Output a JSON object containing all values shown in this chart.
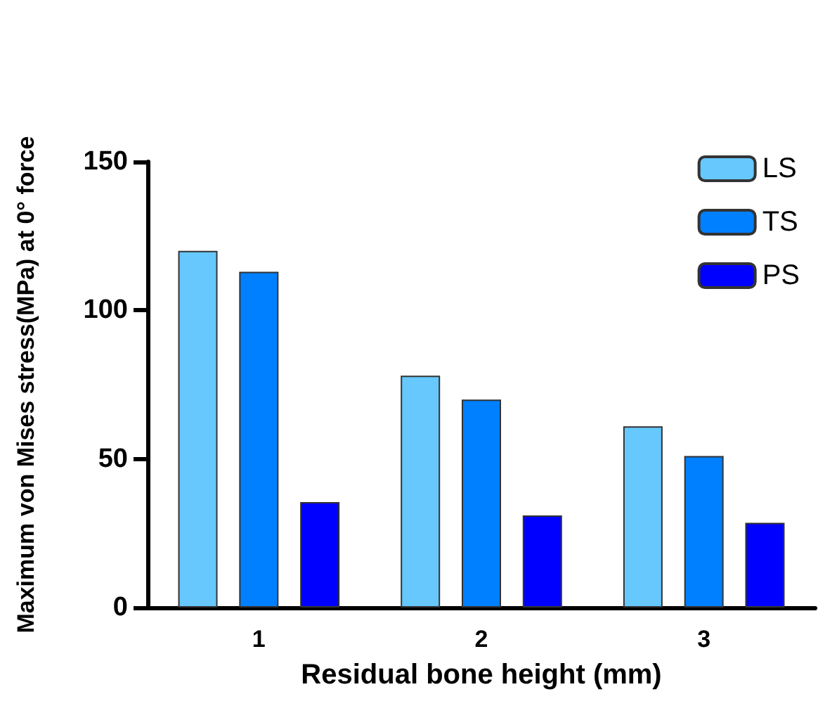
{
  "chart_data": {
    "type": "bar",
    "xlabel": "Residual bone height (mm)",
    "ylabel": "Maximum von Mises stress(MPa) at 0° force",
    "categories": [
      "1",
      "2",
      "3"
    ],
    "series": [
      {
        "name": "LS",
        "color": "#66c8fc",
        "values": [
          120,
          78,
          61
        ]
      },
      {
        "name": "TS",
        "color": "#0080ff",
        "values": [
          113,
          70,
          51
        ]
      },
      {
        "name": "PS",
        "color": "#0000ff",
        "values": [
          35.5,
          31,
          28.5
        ]
      }
    ],
    "ylim": [
      0,
      150
    ],
    "yticks": [
      0,
      50,
      100,
      150
    ],
    "grid": false,
    "legend": "top right"
  }
}
